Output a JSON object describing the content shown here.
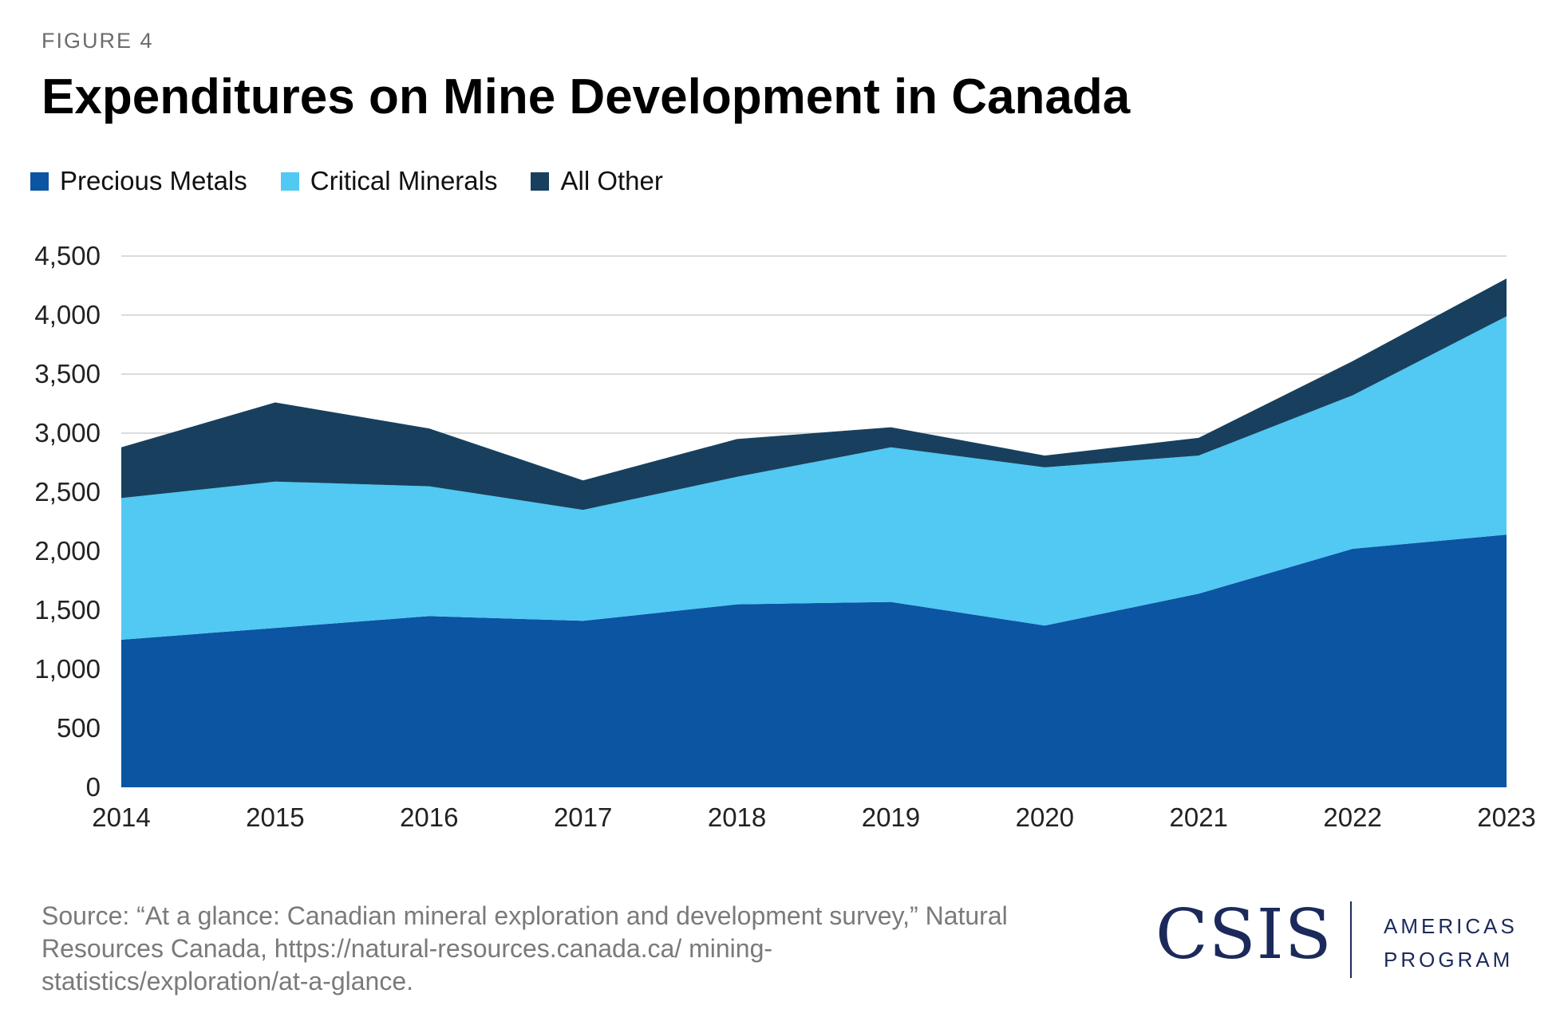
{
  "figure_label": "FIGURE 4",
  "title": "Expenditures on Mine Development in Canada",
  "source": "Source: “At a glance: Canadian mineral exploration and development survey,” Natural Resources Canada, https://natural-resources.canada.ca/ mining-statistics/exploration/at-a-glance.",
  "logo": {
    "name": "CSIS",
    "program_line1": "AMERICAS",
    "program_line2": "PROGRAM",
    "color": "#1b2a5a"
  },
  "chart_data": {
    "type": "area",
    "stacked": true,
    "title": "Expenditures on Mine Development in Canada",
    "xlabel": "",
    "ylabel": "",
    "x": [
      "2014",
      "2015",
      "2016",
      "2017",
      "2018",
      "2019",
      "2020",
      "2021",
      "2022",
      "2023"
    ],
    "ylim": [
      0,
      4500
    ],
    "yticks": [
      "0",
      "500",
      "1,000",
      "1,500",
      "2,000",
      "2,500",
      "3,000",
      "3,500",
      "4,000",
      "4,500"
    ],
    "grid": true,
    "legend_position": "top-left",
    "series": [
      {
        "name": "Precious Metals",
        "color": "#0b55a3",
        "values": [
          1250,
          1350,
          1450,
          1410,
          1550,
          1570,
          1370,
          1640,
          2020,
          2140
        ]
      },
      {
        "name": "Critical Minerals",
        "color": "#51c9f2",
        "values": [
          1200,
          1240,
          1100,
          940,
          1080,
          1310,
          1340,
          1170,
          1300,
          1850
        ]
      },
      {
        "name": "All Other",
        "color": "#18405e",
        "values": [
          430,
          670,
          490,
          250,
          320,
          170,
          100,
          150,
          290,
          320
        ]
      }
    ]
  }
}
